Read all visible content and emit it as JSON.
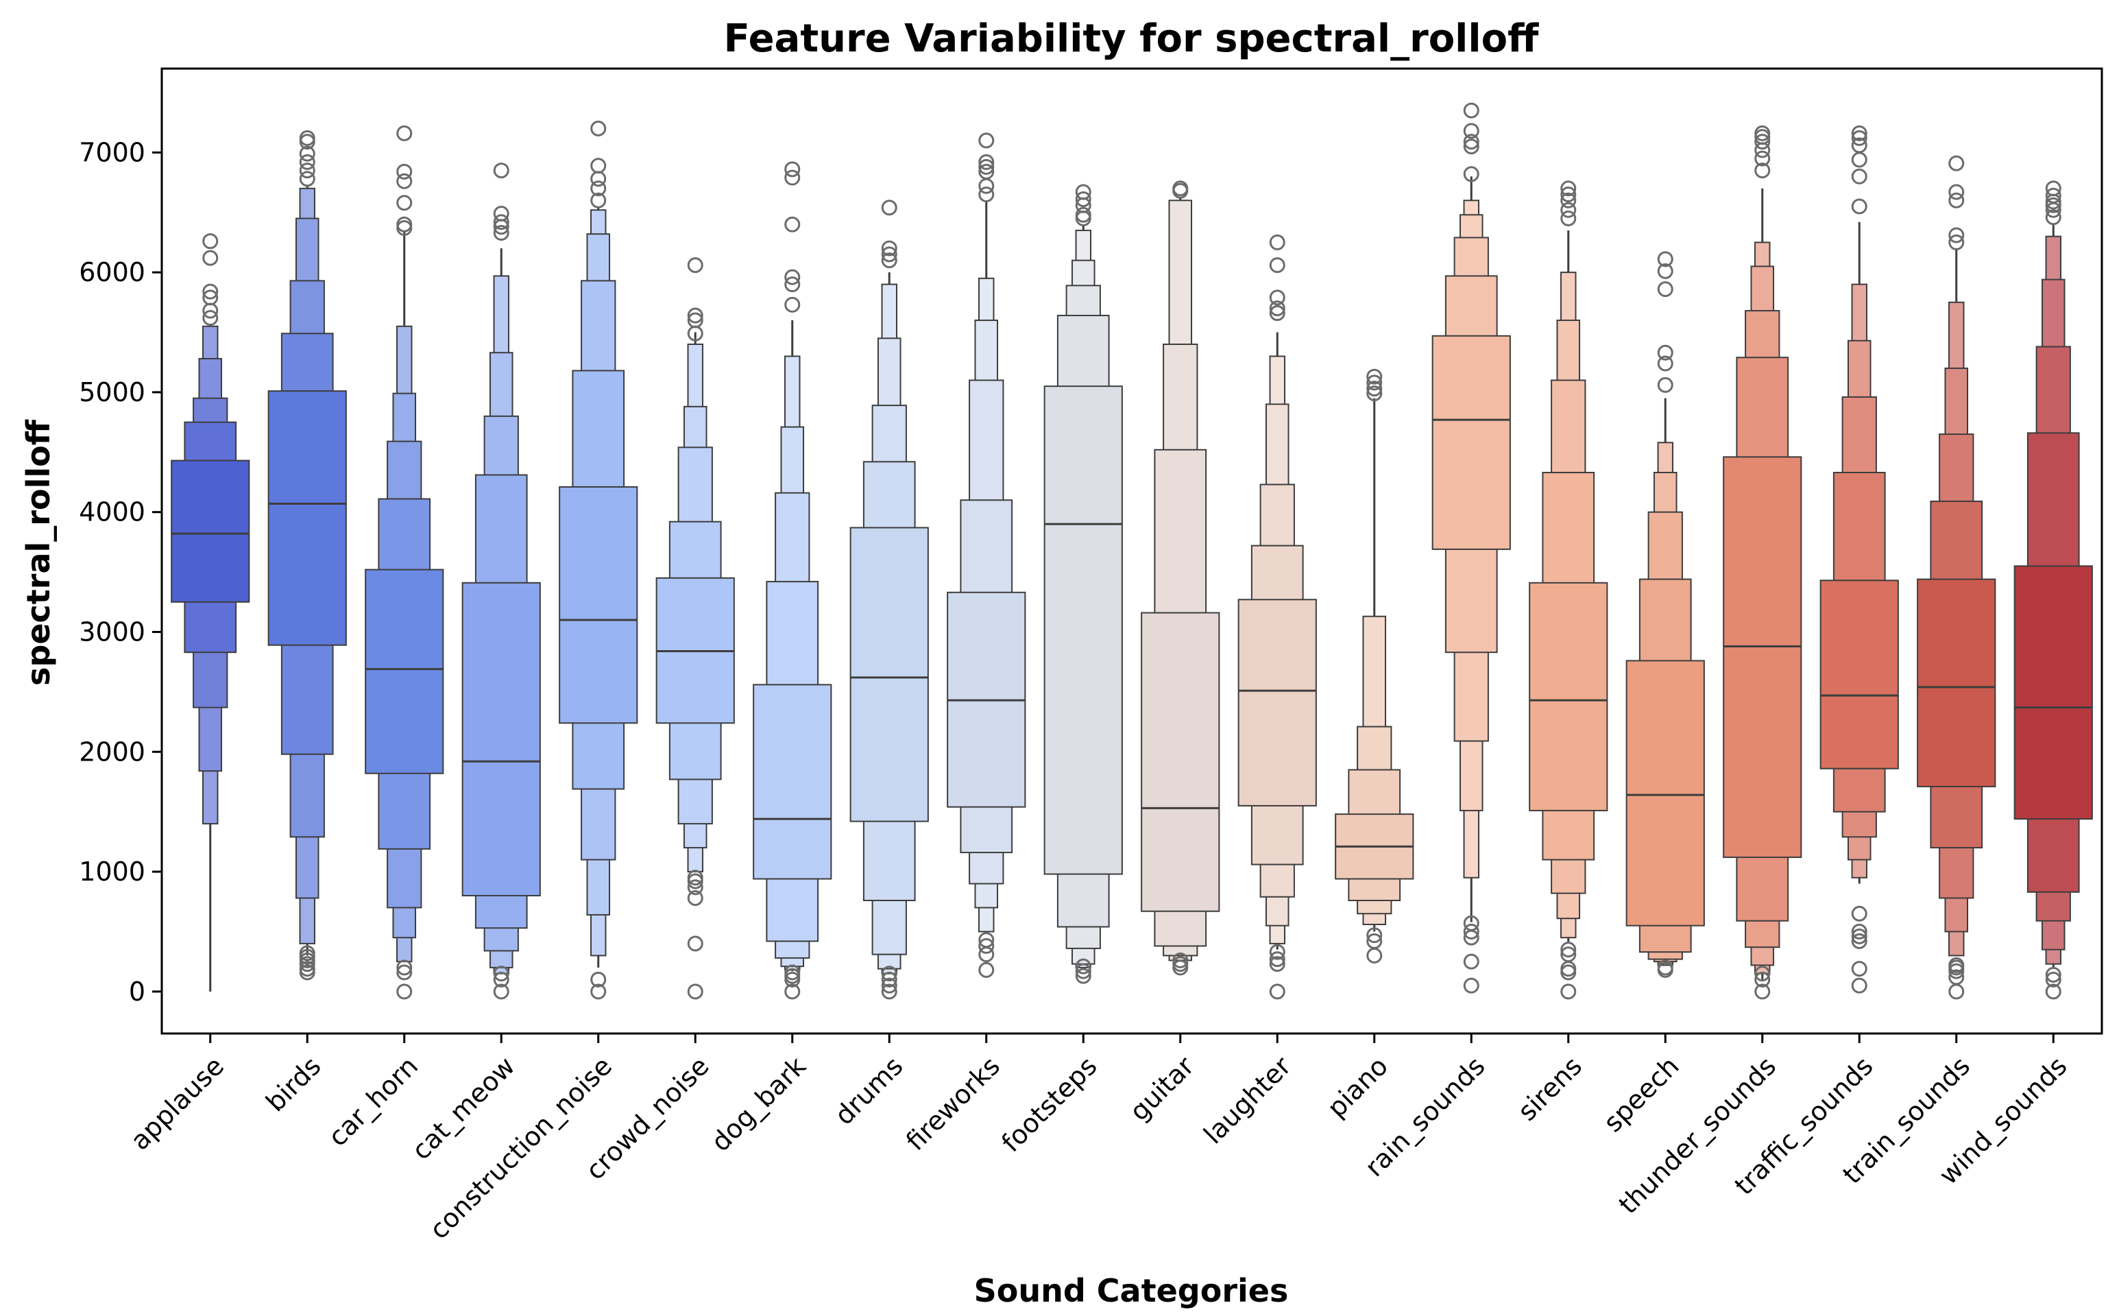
{
  "chart_data": {
    "type": "boxen",
    "title": "Feature Variability for spectral_rolloff",
    "xlabel": "Sound Categories",
    "ylabel": "spectral_rolloff",
    "ylim": [
      -350,
      7700
    ],
    "yticks": [
      0,
      1000,
      2000,
      3000,
      4000,
      5000,
      6000,
      7000
    ],
    "grid": false,
    "legend": "none",
    "categories": [
      "applause",
      "birds",
      "car_horn",
      "cat_meow",
      "construction_noise",
      "crowd_noise",
      "dog_bark",
      "drums",
      "fireworks",
      "footsteps",
      "guitar",
      "laughter",
      "piano",
      "rain_sounds",
      "sirens",
      "speech",
      "thunder_sounds",
      "traffic_sounds",
      "train_sounds",
      "wind_sounds"
    ],
    "colors": [
      "#4d61d1",
      "#5d79db",
      "#6b8ae4",
      "#8aa6ee",
      "#98b4f3",
      "#adc5f7",
      "#b9cef7",
      "#c7d7f2",
      "#d1dbee",
      "#dcdfe6",
      "#e5d9d5",
      "#ebd2c6",
      "#efcab7",
      "#f3bca4",
      "#efae91",
      "#eb9f80",
      "#e38871",
      "#d8715f",
      "#ca5a4e",
      "#b6393f"
    ],
    "series": [
      {
        "name": "applause",
        "median": 3820,
        "levels": [
          [
            3250,
            4430
          ],
          [
            2830,
            4750
          ],
          [
            2370,
            4950
          ],
          [
            1840,
            5280
          ],
          [
            1400,
            5550
          ]
        ],
        "whisker": [
          0,
          5560
        ],
        "outliers": [
          5620,
          5680,
          5790,
          5840,
          6120,
          6260
        ]
      },
      {
        "name": "birds",
        "median": 4070,
        "levels": [
          [
            2890,
            5010
          ],
          [
            1980,
            5490
          ],
          [
            1290,
            5930
          ],
          [
            780,
            6450
          ],
          [
            400,
            6700
          ]
        ],
        "whisker": [
          300,
          6720
        ],
        "outliers": [
          160,
          190,
          230,
          260,
          290,
          320,
          6780,
          6850,
          6920,
          6990,
          7090,
          7120
        ]
      },
      {
        "name": "car_horn",
        "median": 2690,
        "levels": [
          [
            1820,
            3520
          ],
          [
            1190,
            4110
          ],
          [
            700,
            4590
          ],
          [
            450,
            4990
          ],
          [
            250,
            5550
          ]
        ],
        "whisker": [
          250,
          6350
        ],
        "outliers": [
          0,
          160,
          200,
          6370,
          6400,
          6580,
          6760,
          6840,
          7160
        ]
      },
      {
        "name": "cat_meow",
        "median": 1920,
        "levels": [
          [
            800,
            3410
          ],
          [
            530,
            4310
          ],
          [
            340,
            4800
          ],
          [
            200,
            5330
          ],
          [
            150,
            5970
          ]
        ],
        "whisker": [
          150,
          6200
        ],
        "outliers": [
          0,
          100,
          150,
          6330,
          6380,
          6420,
          6490,
          6850
        ]
      },
      {
        "name": "construction_noise",
        "median": 3100,
        "levels": [
          [
            2240,
            4210
          ],
          [
            1690,
            5180
          ],
          [
            1100,
            5930
          ],
          [
            640,
            6320
          ],
          [
            300,
            6520
          ]
        ],
        "whisker": [
          200,
          6540
        ],
        "outliers": [
          0,
          100,
          6600,
          6700,
          6780,
          6890,
          7200
        ]
      },
      {
        "name": "crowd_noise",
        "median": 2840,
        "levels": [
          [
            2240,
            3450
          ],
          [
            1770,
            3920
          ],
          [
            1400,
            4540
          ],
          [
            1200,
            4880
          ],
          [
            1000,
            5400
          ]
        ],
        "whisker": [
          1000,
          5500
        ],
        "outliers": [
          0,
          400,
          780,
          870,
          920,
          950,
          5490,
          5600,
          5640,
          6060
        ]
      },
      {
        "name": "dog_bark",
        "median": 1440,
        "levels": [
          [
            940,
            2560
          ],
          [
            420,
            3420
          ],
          [
            280,
            4160
          ],
          [
            210,
            4710
          ],
          [
            180,
            5300
          ]
        ],
        "whisker": [
          170,
          5600
        ],
        "outliers": [
          0,
          100,
          130,
          160,
          5730,
          5900,
          5960,
          6400,
          6790,
          6860
        ]
      },
      {
        "name": "drums",
        "median": 2620,
        "levels": [
          [
            1420,
            3870
          ],
          [
            760,
            4420
          ],
          [
            310,
            4890
          ],
          [
            190,
            5450
          ],
          [
            150,
            5900
          ]
        ],
        "whisker": [
          150,
          6000
        ],
        "outliers": [
          0,
          50,
          100,
          150,
          6100,
          6150,
          6200,
          6540
        ]
      },
      {
        "name": "fireworks",
        "median": 2430,
        "levels": [
          [
            1540,
            3330
          ],
          [
            1160,
            4100
          ],
          [
            900,
            5100
          ],
          [
            700,
            5600
          ],
          [
            500,
            5950
          ]
        ],
        "whisker": [
          500,
          6600
        ],
        "outliers": [
          180,
          310,
          380,
          430,
          6650,
          6720,
          6840,
          6880,
          6920,
          7100
        ]
      },
      {
        "name": "footsteps",
        "median": 3900,
        "levels": [
          [
            980,
            5050
          ],
          [
            540,
            5640
          ],
          [
            360,
            5890
          ],
          [
            230,
            6100
          ],
          [
            200,
            6350
          ]
        ],
        "whisker": [
          200,
          6400
        ],
        "outliers": [
          130,
          170,
          210,
          6450,
          6480,
          6560,
          6610,
          6670
        ]
      },
      {
        "name": "guitar",
        "median": 1530,
        "levels": [
          [
            670,
            3160
          ],
          [
            380,
            4520
          ],
          [
            300,
            5400
          ],
          [
            260,
            6600
          ]
        ],
        "whisker": [
          260,
          6620
        ],
        "outliers": [
          200,
          230,
          260,
          6680,
          6700
        ]
      },
      {
        "name": "laughter",
        "median": 2510,
        "levels": [
          [
            1550,
            3270
          ],
          [
            1060,
            3720
          ],
          [
            790,
            4230
          ],
          [
            550,
            4900
          ],
          [
            400,
            5300
          ]
        ],
        "whisker": [
          350,
          5500
        ],
        "outliers": [
          0,
          230,
          270,
          330,
          5660,
          5700,
          5790,
          6060,
          6250
        ]
      },
      {
        "name": "piano",
        "median": 1210,
        "levels": [
          [
            940,
            1480
          ],
          [
            760,
            1850
          ],
          [
            650,
            2210
          ],
          [
            560,
            3130
          ]
        ],
        "whisker": [
          500,
          4950
        ],
        "outliers": [
          300,
          420,
          470,
          4990,
          5030,
          5080,
          5130
        ]
      },
      {
        "name": "rain_sounds",
        "median": 4770,
        "levels": [
          [
            3690,
            5470
          ],
          [
            2830,
            5970
          ],
          [
            2090,
            6290
          ],
          [
            1510,
            6480
          ],
          [
            950,
            6600
          ]
        ],
        "whisker": [
          580,
          6800
        ],
        "outliers": [
          50,
          250,
          450,
          500,
          570,
          6820,
          7050,
          7090,
          7180,
          7350
        ]
      },
      {
        "name": "sirens",
        "median": 2430,
        "levels": [
          [
            1510,
            3410
          ],
          [
            1100,
            4330
          ],
          [
            820,
            5100
          ],
          [
            610,
            5600
          ],
          [
            450,
            6000
          ]
        ],
        "whisker": [
          400,
          6350
        ],
        "outliers": [
          0,
          160,
          190,
          310,
          350,
          6450,
          6520,
          6600,
          6650,
          6700
        ]
      },
      {
        "name": "speech",
        "median": 1640,
        "levels": [
          [
            550,
            2760
          ],
          [
            330,
            3440
          ],
          [
            270,
            4000
          ],
          [
            250,
            4330
          ],
          [
            220,
            4580
          ]
        ],
        "whisker": [
          220,
          4950
        ],
        "outliers": [
          180,
          200,
          5060,
          5240,
          5330,
          5860,
          6010,
          6110
        ]
      },
      {
        "name": "thunder_sounds",
        "median": 2880,
        "levels": [
          [
            1120,
            4460
          ],
          [
            590,
            5290
          ],
          [
            370,
            5680
          ],
          [
            220,
            6050
          ],
          [
            150,
            6250
          ]
        ],
        "whisker": [
          100,
          6700
        ],
        "outliers": [
          0,
          100,
          150,
          6850,
          6950,
          7020,
          7090,
          7130,
          7160
        ]
      },
      {
        "name": "traffic_sounds",
        "median": 2470,
        "levels": [
          [
            1860,
            3430
          ],
          [
            1500,
            4330
          ],
          [
            1290,
            4960
          ],
          [
            1100,
            5430
          ],
          [
            950,
            5900
          ]
        ],
        "whisker": [
          900,
          6420
        ],
        "outliers": [
          50,
          190,
          420,
          460,
          500,
          650,
          6550,
          6800,
          6940,
          7060,
          7120,
          7160
        ]
      },
      {
        "name": "train_sounds",
        "median": 2540,
        "levels": [
          [
            1710,
            3440
          ],
          [
            1200,
            4090
          ],
          [
            780,
            4650
          ],
          [
            500,
            5200
          ],
          [
            300,
            5750
          ]
        ],
        "whisker": [
          300,
          6200
        ],
        "outliers": [
          0,
          120,
          170,
          200,
          220,
          6250,
          6310,
          6600,
          6670,
          6910
        ]
      },
      {
        "name": "wind_sounds",
        "median": 2370,
        "levels": [
          [
            1440,
            3550
          ],
          [
            830,
            4660
          ],
          [
            590,
            5380
          ],
          [
            350,
            5940
          ],
          [
            230,
            6300
          ]
        ],
        "whisker": [
          200,
          6400
        ],
        "outliers": [
          0,
          100,
          140,
          6460,
          6520,
          6560,
          6590,
          6640,
          6700
        ]
      }
    ]
  }
}
